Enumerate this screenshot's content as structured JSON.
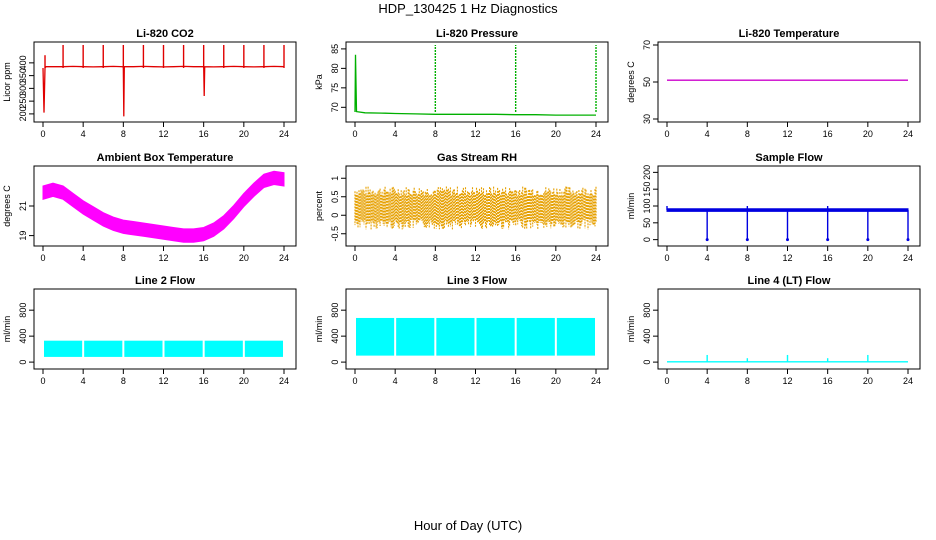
{
  "figure": {
    "title": "HDP_130425  1 Hz Diagnostics",
    "xlabel": "Hour of Day (UTC)"
  },
  "chart_data": [
    {
      "type": "line",
      "title": "Li-820 CO2",
      "ylabel": "Licor ppm",
      "color": "#e00000",
      "xlim": [
        0,
        24
      ],
      "ylim": [
        180,
        470
      ],
      "xticks": [
        0,
        4,
        8,
        12,
        16,
        20,
        24
      ],
      "yticks": [
        200,
        250,
        300,
        350,
        400
      ],
      "series": [
        {
          "style": "line",
          "x": [
            0,
            0.1,
            0.2,
            0.3,
            2,
            3,
            4,
            5,
            6,
            7,
            8,
            8.05,
            8.1,
            9,
            10,
            11,
            12,
            13,
            14,
            15,
            16,
            16.05,
            16.1,
            17,
            18,
            19,
            20,
            21,
            22,
            23,
            24
          ],
          "y": [
            380,
            205,
            380,
            385,
            385,
            386,
            385,
            384,
            385,
            386,
            385,
            190,
            385,
            385,
            386,
            385,
            384,
            385,
            386,
            385,
            385,
            270,
            385,
            384,
            385,
            386,
            385,
            384,
            385,
            386,
            385
          ]
        },
        {
          "style": "spikes",
          "x": [
            0.2,
            2,
            4,
            6,
            8,
            10,
            12,
            14,
            16,
            18,
            20,
            22,
            24
          ],
          "y": [
            430,
            470,
            470,
            470,
            470,
            470,
            470,
            470,
            470,
            470,
            470,
            470,
            470
          ]
        }
      ]
    },
    {
      "type": "line",
      "title": "Li-820 Pressure",
      "ylabel": "kPa",
      "color": "#00b000",
      "xlim": [
        0,
        24
      ],
      "ylim": [
        67,
        86
      ],
      "xticks": [
        0,
        4,
        8,
        12,
        16,
        20,
        24
      ],
      "yticks": [
        70,
        75,
        80,
        85
      ],
      "series": [
        {
          "style": "line",
          "x": [
            0,
            0.05,
            0.15,
            1,
            3,
            4,
            6,
            8,
            10,
            12,
            14,
            16,
            18,
            20,
            22,
            23.9,
            24
          ],
          "y": [
            68.8,
            83.5,
            68.9,
            68.6,
            68.5,
            68.4,
            68.3,
            68.2,
            68.2,
            68.2,
            68.2,
            68.1,
            68.1,
            68.0,
            68.0,
            68.0,
            68.0
          ]
        },
        {
          "style": "spikes",
          "x": [
            8,
            16,
            24
          ],
          "y": [
            86,
            86,
            86
          ]
        }
      ]
    },
    {
      "type": "line",
      "title": "Li-820 Temperature",
      "ylabel": "degrees C",
      "color": "#cc00cc",
      "xlim": [
        0,
        24
      ],
      "ylim": [
        30,
        70
      ],
      "xticks": [
        0,
        4,
        8,
        12,
        16,
        20,
        24
      ],
      "yticks": [
        30,
        50,
        70
      ],
      "series": [
        {
          "style": "line",
          "x": [
            0,
            24
          ],
          "y": [
            51,
            51
          ]
        }
      ]
    },
    {
      "type": "area",
      "title": "Ambient Box Temperature",
      "ylabel": "degrees C",
      "color": "#ff00ff",
      "xlim": [
        0,
        24
      ],
      "ylim": [
        18.5,
        23.5
      ],
      "xticks": [
        0,
        4,
        8,
        12,
        16,
        20,
        24
      ],
      "yticks": [
        19,
        21
      ],
      "series": [
        {
          "style": "band",
          "x": [
            0,
            1,
            2,
            3,
            4,
            5,
            6,
            7,
            8,
            9,
            10,
            11,
            12,
            13,
            14,
            15,
            16,
            17,
            18,
            19,
            20,
            21,
            22,
            23,
            24
          ],
          "y": [
            21.9,
            22.1,
            21.9,
            21.4,
            20.9,
            20.5,
            20.1,
            19.8,
            19.6,
            19.5,
            19.4,
            19.3,
            19.2,
            19.1,
            19.0,
            19.0,
            19.1,
            19.4,
            19.9,
            20.6,
            21.4,
            22.1,
            22.7,
            22.9,
            22.8
          ],
          "half_width": 0.45
        }
      ]
    },
    {
      "type": "area",
      "title": "Gas Stream RH",
      "ylabel": "percent",
      "color": "#e6a000",
      "xlim": [
        0,
        24
      ],
      "ylim": [
        -0.75,
        1.25
      ],
      "xticks": [
        0,
        4,
        8,
        12,
        16,
        20,
        24
      ],
      "yticks": [
        -0.5,
        0,
        0.5,
        1
      ],
      "series": [
        {
          "style": "noise",
          "x": [
            0,
            24
          ],
          "center": 0.2,
          "half_width": 0.45,
          "max": 1.0,
          "min": -0.55
        }
      ]
    },
    {
      "type": "line",
      "title": "Sample Flow",
      "ylabel": "ml/min",
      "color": "#0000e0",
      "xlim": [
        0,
        24
      ],
      "ylim": [
        -10,
        210
      ],
      "xticks": [
        0,
        4,
        8,
        12,
        16,
        20,
        24
      ],
      "yticks": [
        0,
        50,
        100,
        150,
        200
      ],
      "series": [
        {
          "style": "band",
          "x": [
            0,
            24
          ],
          "y": [
            88,
            88
          ],
          "half_width": 4
        },
        {
          "style": "dips",
          "x": [
            4,
            8,
            12,
            16,
            20,
            24
          ],
          "y": [
            0,
            0,
            0,
            0,
            0,
            0
          ]
        },
        {
          "style": "spikes",
          "x": [
            0,
            8,
            16
          ],
          "y": [
            100,
            100,
            100
          ]
        }
      ]
    },
    {
      "type": "area",
      "title": "Line 2 Flow",
      "ylabel": "ml/min",
      "color": "#00ffff",
      "xlim": [
        0,
        24
      ],
      "ylim": [
        -60,
        1080
      ],
      "xticks": [
        0,
        4,
        8,
        12,
        16,
        20,
        24
      ],
      "yticks": [
        0,
        400,
        800
      ],
      "series": [
        {
          "style": "blocks",
          "x0": 0.1,
          "x1": 24,
          "y0": 80,
          "y1": 330,
          "gaps": [
            4,
            8,
            12,
            16,
            20
          ]
        }
      ]
    },
    {
      "type": "area",
      "title": "Line 3 Flow",
      "ylabel": "ml/min",
      "color": "#00ffff",
      "xlim": [
        0,
        24
      ],
      "ylim": [
        -60,
        1080
      ],
      "xticks": [
        0,
        4,
        8,
        12,
        16,
        20,
        24
      ],
      "yticks": [
        0,
        400,
        800
      ],
      "series": [
        {
          "style": "blocks",
          "x0": 0.1,
          "x1": 24,
          "y0": 100,
          "y1": 680,
          "gaps": [
            4,
            8,
            12,
            16,
            20
          ]
        }
      ]
    },
    {
      "type": "line",
      "title": "Line 4 (LT) Flow",
      "ylabel": "ml/min",
      "color": "#00ffff",
      "xlim": [
        0,
        24
      ],
      "ylim": [
        -60,
        1080
      ],
      "xticks": [
        0,
        4,
        8,
        12,
        16,
        20,
        24
      ],
      "yticks": [
        0,
        400,
        800
      ],
      "series": [
        {
          "style": "line",
          "x": [
            0,
            24
          ],
          "y": [
            5,
            5
          ]
        },
        {
          "style": "spikes",
          "x": [
            4,
            8,
            12,
            16,
            20
          ],
          "y": [
            110,
            60,
            110,
            60,
            110
          ]
        }
      ]
    }
  ]
}
